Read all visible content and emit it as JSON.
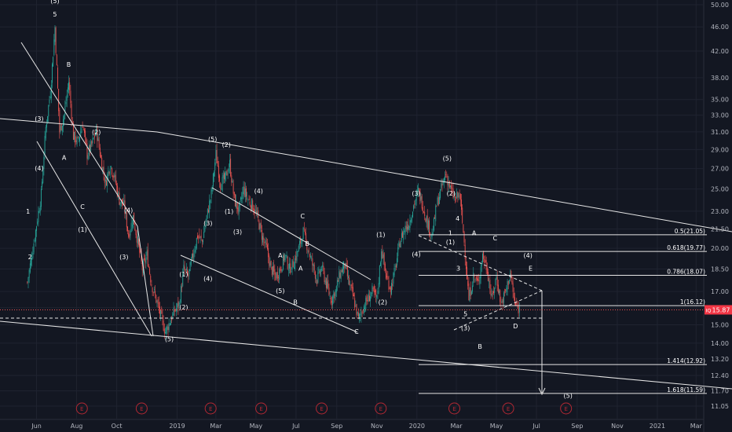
{
  "chart_data": {
    "type": "candlestick",
    "symbol": "IQ",
    "last_price_label": "15.87",
    "y_scale": "log",
    "y_range": [
      10.8,
      50.5
    ],
    "y_ticks": [
      "50.00",
      "46.00",
      "42.00",
      "38.00",
      "35.00",
      "33.00",
      "31.00",
      "29.00",
      "27.00",
      "25.00",
      "23.00",
      "21.50",
      "20.00",
      "18.50",
      "17.00",
      "16.00",
      "15.00",
      "14.00",
      "13.20",
      "12.40",
      "11.70",
      "11.05"
    ],
    "x_ticks": [
      "Jun",
      "Aug",
      "Oct",
      "2019",
      "Mar",
      "May",
      "Jul",
      "Sep",
      "Nov",
      "2020",
      "Mar",
      "May",
      "Jul",
      "Sep",
      "Nov",
      "2021",
      "Mar"
    ],
    "x_tick_dates": [
      "2018-06-01",
      "2018-08-01",
      "2018-10-01",
      "2019-01-01",
      "2019-03-01",
      "2019-05-01",
      "2019-07-01",
      "2019-09-01",
      "2019-11-01",
      "2020-01-01",
      "2020-03-01",
      "2020-05-01",
      "2020-07-01",
      "2020-09-01",
      "2020-11-01",
      "2021-01-01",
      "2021-03-01"
    ],
    "price_path": [
      [
        "2018-05-18",
        17.6
      ],
      [
        "2018-05-28",
        20.5
      ],
      [
        "2018-06-08",
        24.5
      ],
      [
        "2018-06-15",
        31.5
      ],
      [
        "2018-06-22",
        36.0
      ],
      [
        "2018-06-29",
        46.0
      ],
      [
        "2018-07-06",
        31.0
      ],
      [
        "2018-07-13",
        33.0
      ],
      [
        "2018-07-20",
        37.5
      ],
      [
        "2018-07-27",
        30.5
      ],
      [
        "2018-08-03",
        29.8
      ],
      [
        "2018-08-10",
        32.0
      ],
      [
        "2018-08-17",
        28.5
      ],
      [
        "2018-08-24",
        29.5
      ],
      [
        "2018-08-31",
        31.2
      ],
      [
        "2018-09-07",
        28.0
      ],
      [
        "2018-09-14",
        25.5
      ],
      [
        "2018-09-21",
        27.5
      ],
      [
        "2018-09-28",
        26.0
      ],
      [
        "2018-10-05",
        24.0
      ],
      [
        "2018-10-12",
        23.5
      ],
      [
        "2018-10-19",
        21.0
      ],
      [
        "2018-10-26",
        22.5
      ],
      [
        "2018-11-02",
        20.5
      ],
      [
        "2018-11-09",
        18.5
      ],
      [
        "2018-11-16",
        19.5
      ],
      [
        "2018-11-23",
        17.5
      ],
      [
        "2018-11-30",
        16.5
      ],
      [
        "2018-12-07",
        15.5
      ],
      [
        "2018-12-14",
        14.6
      ],
      [
        "2018-12-21",
        15.2
      ],
      [
        "2018-12-28",
        15.8
      ],
      [
        "2019-01-04",
        16.2
      ],
      [
        "2019-01-11",
        18.5
      ],
      [
        "2019-01-18",
        18.0
      ],
      [
        "2019-01-25",
        19.5
      ],
      [
        "2019-02-01",
        21.0
      ],
      [
        "2019-02-08",
        20.5
      ],
      [
        "2019-02-15",
        22.5
      ],
      [
        "2019-02-22",
        24.5
      ],
      [
        "2019-03-01",
        28.5
      ],
      [
        "2019-03-08",
        25.5
      ],
      [
        "2019-03-15",
        26.0
      ],
      [
        "2019-03-22",
        27.5
      ],
      [
        "2019-03-29",
        24.0
      ],
      [
        "2019-04-05",
        23.0
      ],
      [
        "2019-04-12",
        25.0
      ],
      [
        "2019-04-19",
        24.0
      ],
      [
        "2019-04-26",
        23.5
      ],
      [
        "2019-05-03",
        22.5
      ],
      [
        "2019-05-10",
        21.0
      ],
      [
        "2019-05-17",
        20.0
      ],
      [
        "2019-05-24",
        18.5
      ],
      [
        "2019-05-31",
        18.0
      ],
      [
        "2019-06-07",
        18.5
      ],
      [
        "2019-06-14",
        19.5
      ],
      [
        "2019-06-21",
        18.5
      ],
      [
        "2019-06-28",
        19.0
      ],
      [
        "2019-07-05",
        20.0
      ],
      [
        "2019-07-12",
        21.3
      ],
      [
        "2019-07-19",
        20.0
      ],
      [
        "2019-07-26",
        18.8
      ],
      [
        "2019-08-02",
        17.8
      ],
      [
        "2019-08-09",
        18.6
      ],
      [
        "2019-08-16",
        17.5
      ],
      [
        "2019-08-23",
        16.5
      ],
      [
        "2019-08-30",
        17.0
      ],
      [
        "2019-09-06",
        18.2
      ],
      [
        "2019-09-13",
        18.8
      ],
      [
        "2019-09-20",
        17.5
      ],
      [
        "2019-09-27",
        16.5
      ],
      [
        "2019-10-04",
        15.3
      ],
      [
        "2019-10-11",
        16.0
      ],
      [
        "2019-10-18",
        16.5
      ],
      [
        "2019-10-25",
        17.0
      ],
      [
        "2019-11-01",
        16.5
      ],
      [
        "2019-11-08",
        20.0
      ],
      [
        "2019-11-15",
        18.0
      ],
      [
        "2019-11-22",
        17.2
      ],
      [
        "2019-11-29",
        18.5
      ],
      [
        "2019-12-06",
        20.5
      ],
      [
        "2019-12-13",
        21.5
      ],
      [
        "2019-12-20",
        22.0
      ],
      [
        "2019-12-27",
        23.5
      ],
      [
        "2020-01-03",
        24.8
      ],
      [
        "2020-01-10",
        23.5
      ],
      [
        "2020-01-17",
        22.0
      ],
      [
        "2020-01-24",
        21.0
      ],
      [
        "2020-01-31",
        23.5
      ],
      [
        "2020-02-07",
        25.0
      ],
      [
        "2020-02-14",
        26.5
      ],
      [
        "2020-02-21",
        25.0
      ],
      [
        "2020-02-28",
        24.0
      ],
      [
        "2020-03-06",
        24.5
      ],
      [
        "2020-03-13",
        20.5
      ],
      [
        "2020-03-20",
        16.5
      ],
      [
        "2020-03-27",
        18.0
      ],
      [
        "2020-04-03",
        17.5
      ],
      [
        "2020-04-10",
        19.5
      ],
      [
        "2020-04-17",
        18.5
      ],
      [
        "2020-04-24",
        16.5
      ],
      [
        "2020-05-01",
        18.0
      ],
      [
        "2020-05-08",
        16.2
      ],
      [
        "2020-05-15",
        17.0
      ],
      [
        "2020-05-22",
        18.2
      ],
      [
        "2020-05-29",
        16.2
      ],
      [
        "2020-06-05",
        15.87
      ]
    ],
    "wave_labels": [
      {
        "text": "(5)",
        "date": "2018-06-29",
        "price": 50.3
      },
      {
        "text": "5",
        "date": "2018-06-29",
        "price": 47.8
      },
      {
        "text": "B",
        "date": "2018-07-20",
        "price": 39.6
      },
      {
        "text": "(3)",
        "date": "2018-06-05",
        "price": 32.3
      },
      {
        "text": "(2)",
        "date": "2018-08-31",
        "price": 30.7
      },
      {
        "text": "(4)",
        "date": "2018-06-05",
        "price": 26.8
      },
      {
        "text": "A",
        "date": "2018-07-13",
        "price": 27.9
      },
      {
        "text": "C",
        "date": "2018-08-10",
        "price": 23.2
      },
      {
        "text": "(1)",
        "date": "2018-08-10",
        "price": 21.3
      },
      {
        "text": "(4)",
        "date": "2018-10-19",
        "price": 22.9
      },
      {
        "text": "1",
        "date": "2018-05-19",
        "price": 22.8
      },
      {
        "text": "2",
        "date": "2018-05-22",
        "price": 19.2
      },
      {
        "text": "(3)",
        "date": "2018-10-12",
        "price": 19.2
      },
      {
        "text": "(1)",
        "date": "2019-01-11",
        "price": 18.0
      },
      {
        "text": "(2)",
        "date": "2019-01-11",
        "price": 15.9
      },
      {
        "text": "(5)",
        "date": "2018-12-20",
        "price": 14.1
      },
      {
        "text": "(5)",
        "date": "2019-02-24",
        "price": 29.9
      },
      {
        "text": "(2)",
        "date": "2019-03-17",
        "price": 29.3
      },
      {
        "text": "(3)",
        "date": "2019-02-17",
        "price": 21.8
      },
      {
        "text": "(1)",
        "date": "2019-03-21",
        "price": 22.8
      },
      {
        "text": "(3)",
        "date": "2019-04-03",
        "price": 21.1
      },
      {
        "text": "(4)",
        "date": "2019-05-05",
        "price": 24.6
      },
      {
        "text": "(4)",
        "date": "2019-02-17",
        "price": 17.7
      },
      {
        "text": "C",
        "date": "2019-07-11",
        "price": 22.4
      },
      {
        "text": "B",
        "date": "2019-07-18",
        "price": 20.2
      },
      {
        "text": "A",
        "date": "2019-06-07",
        "price": 19.3
      },
      {
        "text": "A",
        "date": "2019-07-08",
        "price": 18.4
      },
      {
        "text": "(5)",
        "date": "2019-06-07",
        "price": 16.9
      },
      {
        "text": "B",
        "date": "2019-06-30",
        "price": 16.2
      },
      {
        "text": "C",
        "date": "2019-10-01",
        "price": 14.5
      },
      {
        "text": "(1)",
        "date": "2019-11-07",
        "price": 20.9
      },
      {
        "text": "(2)",
        "date": "2019-11-10",
        "price": 16.2
      },
      {
        "text": "(3)",
        "date": "2019-12-31",
        "price": 24.4
      },
      {
        "text": "(4)",
        "date": "2019-12-31",
        "price": 19.4
      },
      {
        "text": "(5)",
        "date": "2020-02-16",
        "price": 27.8
      },
      {
        "text": "(2)",
        "date": "2020-02-22",
        "price": 24.4
      },
      {
        "text": "4",
        "date": "2020-03-03",
        "price": 22.2
      },
      {
        "text": "1",
        "date": "2020-02-21",
        "price": 21.0
      },
      {
        "text": "(1)",
        "date": "2020-02-21",
        "price": 20.3
      },
      {
        "text": "3",
        "date": "2020-03-04",
        "price": 18.4
      },
      {
        "text": "5",
        "date": "2020-03-15",
        "price": 15.5
      },
      {
        "text": "(3)",
        "date": "2020-03-15",
        "price": 14.7
      },
      {
        "text": "B",
        "date": "2020-04-06",
        "price": 13.7
      },
      {
        "text": "A",
        "date": "2020-03-28",
        "price": 21.0
      },
      {
        "text": "C",
        "date": "2020-04-29",
        "price": 20.6
      },
      {
        "text": "(4)",
        "date": "2020-06-18",
        "price": 19.3
      },
      {
        "text": "E",
        "date": "2020-06-22",
        "price": 18.4
      },
      {
        "text": "D",
        "date": "2020-05-30",
        "price": 14.8
      },
      {
        "text": "(5)",
        "date": "2020-08-18",
        "price": 11.4
      }
    ],
    "fib_levels": [
      {
        "label": "0.5(21.05)",
        "price": 21.05
      },
      {
        "label": "0.618(19.77)",
        "price": 19.77
      },
      {
        "label": "0.786(18.07)",
        "price": 18.07
      },
      {
        "label": "1(16.12)",
        "price": 16.12
      },
      {
        "label": "1.414(12.92)",
        "price": 12.92
      },
      {
        "label": "1.618(11.59)",
        "price": 11.59
      }
    ],
    "earnings_marker": "E",
    "earnings_dates": [
      "2018-08-09",
      "2018-11-08",
      "2019-02-21",
      "2019-05-09",
      "2019-08-09",
      "2019-11-07",
      "2020-02-27",
      "2020-05-19",
      "2020-08-15"
    ]
  }
}
